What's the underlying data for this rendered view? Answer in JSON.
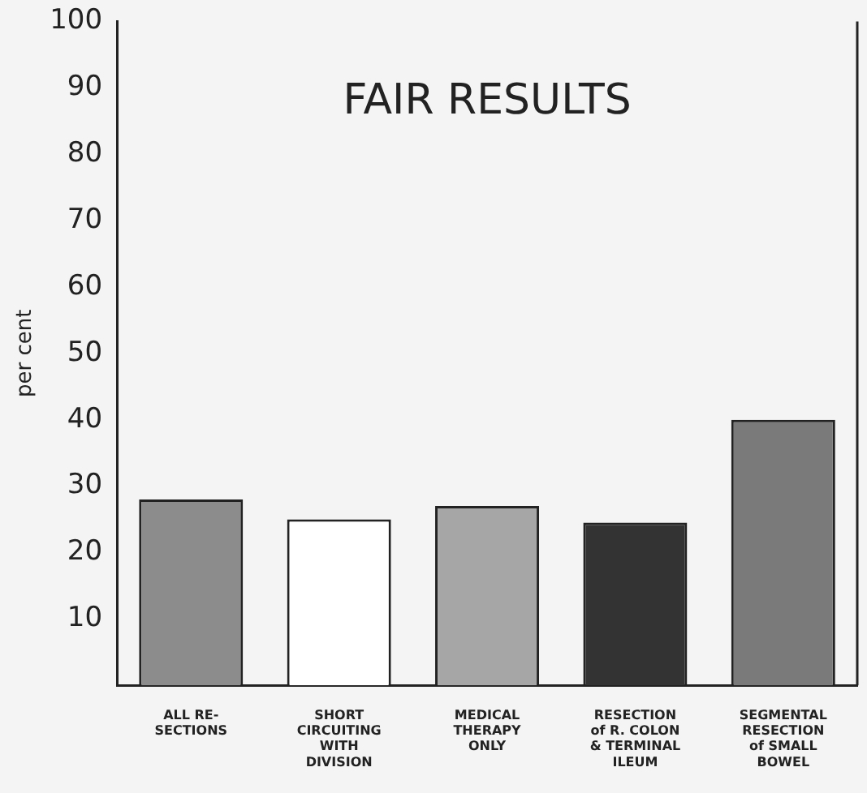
{
  "chart_data": {
    "type": "bar",
    "title": "FAIR RESULTS",
    "ylabel": "per cent",
    "categories": [
      "ALL RE-\nSECTIONS",
      "SHORT\nCIRCUITING\nWITH\nDIVISION",
      "MEDICAL\nTHERAPY\nONLY",
      "RESECTION\nof R. COLON\n& TERMINAL\nILEUM",
      "SEGMENTAL\nRESECTION\nof SMALL\nBOWEL"
    ],
    "values": [
      28,
      25,
      27,
      24.5,
      40
    ],
    "colors": [
      "#8c8c8c",
      "#ffffff",
      "#a6a6a6",
      "#333333",
      "#7a7a7a"
    ],
    "ylim": [
      0,
      100
    ],
    "yticks": [
      10,
      20,
      30,
      40,
      50,
      60,
      70,
      80,
      90,
      100
    ],
    "grid": false,
    "legend": false
  }
}
